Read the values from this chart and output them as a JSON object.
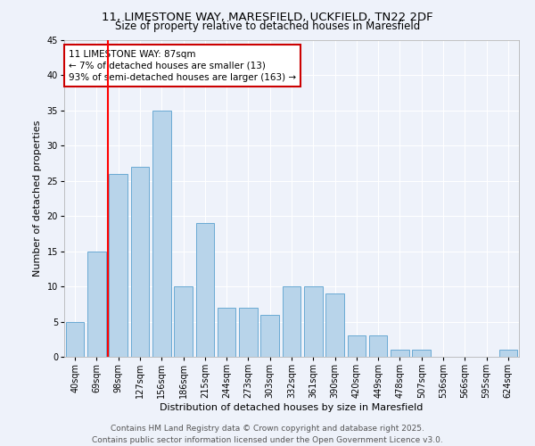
{
  "title_line1": "11, LIMESTONE WAY, MARESFIELD, UCKFIELD, TN22 2DF",
  "title_line2": "Size of property relative to detached houses in Maresfield",
  "xlabel": "Distribution of detached houses by size in Maresfield",
  "ylabel": "Number of detached properties",
  "categories": [
    "40sqm",
    "69sqm",
    "98sqm",
    "127sqm",
    "156sqm",
    "186sqm",
    "215sqm",
    "244sqm",
    "273sqm",
    "303sqm",
    "332sqm",
    "361sqm",
    "390sqm",
    "420sqm",
    "449sqm",
    "478sqm",
    "507sqm",
    "536sqm",
    "566sqm",
    "595sqm",
    "624sqm"
  ],
  "values": [
    5,
    15,
    26,
    27,
    35,
    10,
    19,
    7,
    7,
    6,
    10,
    10,
    9,
    3,
    3,
    1,
    1,
    0,
    0,
    0,
    1
  ],
  "bar_color": "#b8d4ea",
  "bar_edge_color": "#6aaad4",
  "red_line_x": 1.5,
  "annotation_text": "11 LIMESTONE WAY: 87sqm\n← 7% of detached houses are smaller (13)\n93% of semi-detached houses are larger (163) →",
  "annotation_box_color": "#ffffff",
  "annotation_box_edge_color": "#cc0000",
  "ylim": [
    0,
    45
  ],
  "yticks": [
    0,
    5,
    10,
    15,
    20,
    25,
    30,
    35,
    40,
    45
  ],
  "background_color": "#eef2fa",
  "grid_color": "#ffffff",
  "footer_line1": "Contains HM Land Registry data © Crown copyright and database right 2025.",
  "footer_line2": "Contains public sector information licensed under the Open Government Licence v3.0.",
  "title_fontsize": 9.5,
  "subtitle_fontsize": 8.5,
  "axis_label_fontsize": 8,
  "tick_fontsize": 7,
  "annotation_fontsize": 7.5,
  "footer_fontsize": 6.5
}
